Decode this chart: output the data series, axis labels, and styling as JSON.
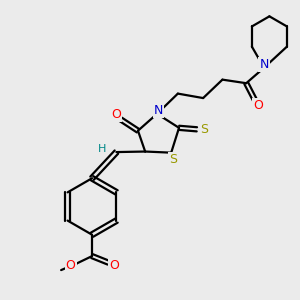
{
  "bg_color": "#ebebeb",
  "atom_colors": {
    "C": "#000000",
    "N": "#0000cc",
    "O": "#ff0000",
    "S": "#999900",
    "H": "#008888"
  },
  "bond_color": "#000000",
  "bond_width": 1.6,
  "figsize": [
    3.0,
    3.0
  ],
  "dpi": 100
}
